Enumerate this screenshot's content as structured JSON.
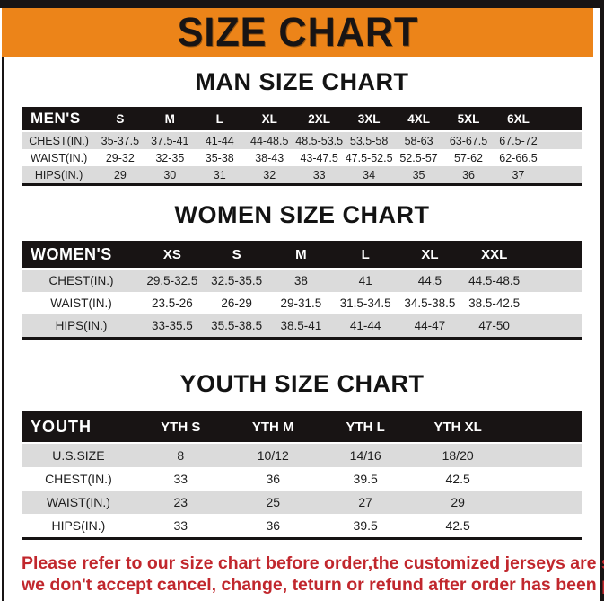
{
  "page": {
    "title": "SIZE CHART",
    "colors": {
      "banner_orange": "#EC8419",
      "header_black": "#181414",
      "row_gray": "#DBDBDB",
      "disclaimer_red": "#C1272D"
    }
  },
  "sections": [
    {
      "heading": "MAN SIZE CHART",
      "table": {
        "corner_label": "MEN'S",
        "columns": [
          "S",
          "M",
          "L",
          "XL",
          "2XL",
          "3XL",
          "4XL",
          "5XL",
          "6XL"
        ],
        "rows": [
          {
            "label": "CHEST(IN.)",
            "values": [
              "35-37.5",
              "37.5-41",
              "41-44",
              "44-48.5",
              "48.5-53.5",
              "53.5-58",
              "58-63",
              "63-67.5",
              "67.5-72"
            ]
          },
          {
            "label": "WAIST(IN.)",
            "values": [
              "29-32",
              "32-35",
              "35-38",
              "38-43",
              "43-47.5",
              "47.5-52.5",
              "52.5-57",
              "57-62",
              "62-66.5"
            ]
          },
          {
            "label": "HIPS(IN.)",
            "values": [
              "29",
              "30",
              "31",
              "32",
              "33",
              "34",
              "35",
              "36",
              "37"
            ]
          }
        ]
      }
    },
    {
      "heading": "WOMEN SIZE CHART",
      "table": {
        "corner_label": "WOMEN'S",
        "columns": [
          "XS",
          "S",
          "M",
          "L",
          "XL",
          "XXL"
        ],
        "rows": [
          {
            "label": "CHEST(IN.)",
            "values": [
              "29.5-32.5",
              "32.5-35.5",
              "38",
              "41",
              "44.5",
              "44.5-48.5"
            ]
          },
          {
            "label": "WAIST(IN.)",
            "values": [
              "23.5-26",
              "26-29",
              "29-31.5",
              "31.5-34.5",
              "34.5-38.5",
              "38.5-42.5"
            ]
          },
          {
            "label": "HIPS(IN.)",
            "values": [
              "33-35.5",
              "35.5-38.5",
              "38.5-41",
              "41-44",
              "44-47",
              "47-50"
            ]
          }
        ]
      }
    },
    {
      "heading": "YOUTH SIZE CHART",
      "table": {
        "corner_label": "YOUTH",
        "columns": [
          "YTH S",
          "YTH M",
          "YTH L",
          "YTH XL"
        ],
        "rows": [
          {
            "label": "U.S.SIZE",
            "values": [
              "8",
              "10/12",
              "14/16",
              "18/20"
            ]
          },
          {
            "label": "CHEST(IN.)",
            "values": [
              "33",
              "36",
              "39.5",
              "42.5"
            ]
          },
          {
            "label": "WAIST(IN.)",
            "values": [
              "23",
              "25",
              "27",
              "29"
            ]
          },
          {
            "label": "HIPS(IN.)",
            "values": [
              "33",
              "36",
              "39.5",
              "42.5"
            ]
          }
        ]
      }
    }
  ],
  "disclaimer": {
    "line1": "Please refer to our size chart before order,the customized jerseys are special products,",
    "line2": "we don't accept cancel, change, teturn or refund after order has been placed!"
  }
}
